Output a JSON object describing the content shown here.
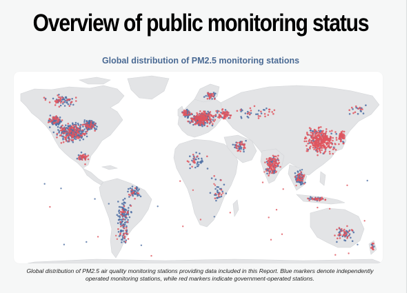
{
  "page": {
    "title": "Overview of public monitoring status",
    "map_title": "Global distribution of PM2.5 monitoring stations",
    "caption": "Global distribution of PM2.5 air quality monitoring stations providing data included in this Report. Blue markers denote independently operated monitoring stations, while red markers indicate government-operated stations."
  },
  "map": {
    "type": "world point map",
    "land_color": "#e3e4e6",
    "background_color": "#ffffff",
    "marker_categories": [
      {
        "category": "independent",
        "color": "#4e6fa3"
      },
      {
        "category": "government",
        "color": "#e0555e"
      }
    ]
  }
}
